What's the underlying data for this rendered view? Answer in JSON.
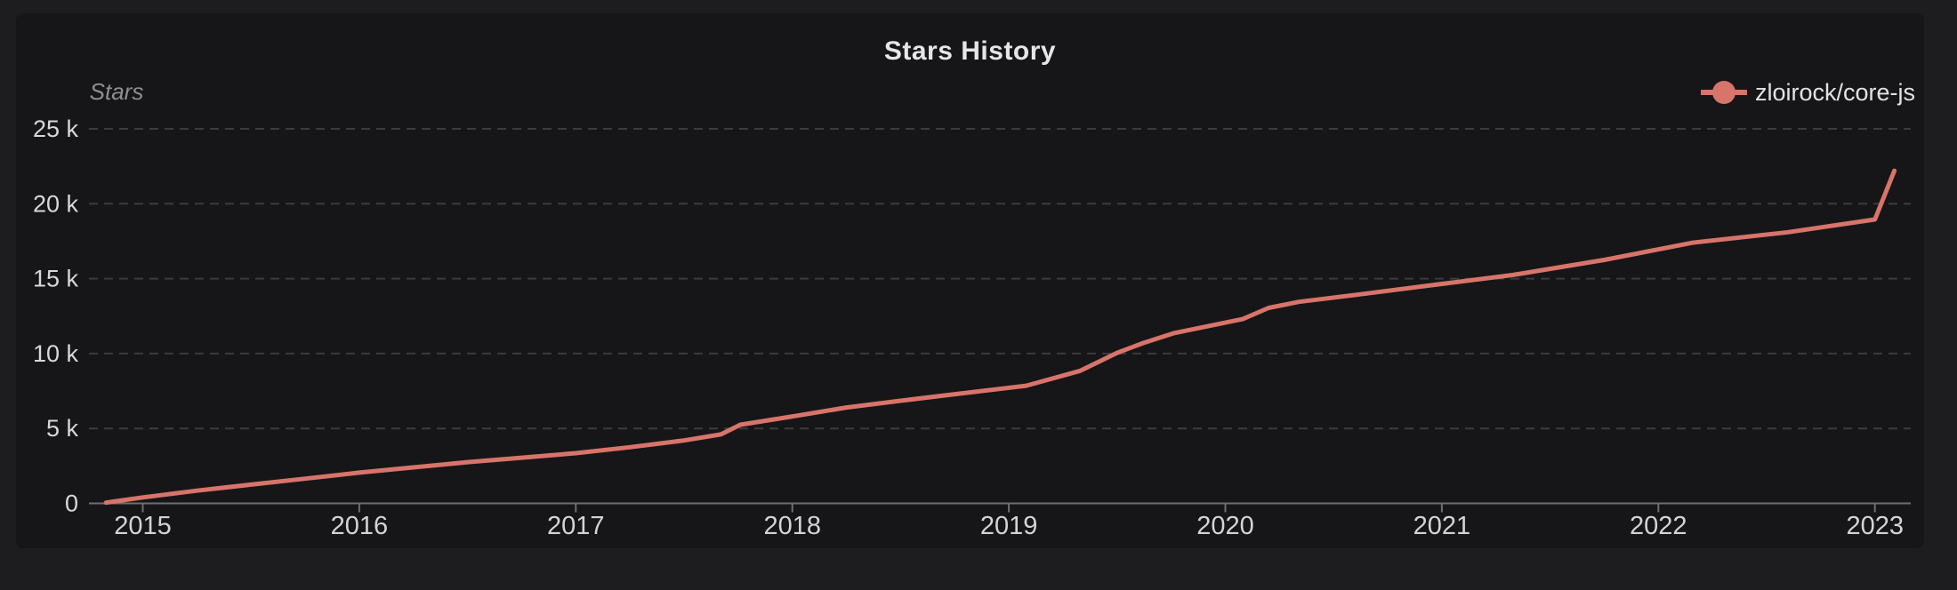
{
  "page": {
    "background": "#1d1d1f",
    "card_background": "#161618"
  },
  "header": {
    "title": "Stars History"
  },
  "legend": {
    "series_label": "zloirock/core-js",
    "marker_color": "#d8746a"
  },
  "chart_data": {
    "type": "line",
    "title": "Stars History",
    "ylabel": "Stars",
    "xlabel": "",
    "grid": "dashed-horizontal",
    "legend_position": "top-right",
    "xlim": [
      2014.75,
      2023.17
    ],
    "ylim": [
      0,
      26500
    ],
    "x_ticks": [
      {
        "value": 2015,
        "label": "2015"
      },
      {
        "value": 2016,
        "label": "2016"
      },
      {
        "value": 2017,
        "label": "2017"
      },
      {
        "value": 2018,
        "label": "2018"
      },
      {
        "value": 2019,
        "label": "2019"
      },
      {
        "value": 2020,
        "label": "2020"
      },
      {
        "value": 2021,
        "label": "2021"
      },
      {
        "value": 2022,
        "label": "2022"
      },
      {
        "value": 2023,
        "label": "2023"
      }
    ],
    "y_ticks": [
      {
        "value": 0,
        "label": "0"
      },
      {
        "value": 5000,
        "label": "5 k"
      },
      {
        "value": 10000,
        "label": "10 k"
      },
      {
        "value": 15000,
        "label": "15 k"
      },
      {
        "value": 20000,
        "label": "20 k"
      },
      {
        "value": 25000,
        "label": "25 k"
      }
    ],
    "series": [
      {
        "name": "zloirock/core-js",
        "color": "#d8746a",
        "points": [
          [
            2014.83,
            50
          ],
          [
            2015.0,
            400
          ],
          [
            2015.25,
            850
          ],
          [
            2015.5,
            1250
          ],
          [
            2015.75,
            1650
          ],
          [
            2016.0,
            2050
          ],
          [
            2016.25,
            2400
          ],
          [
            2016.5,
            2750
          ],
          [
            2016.75,
            3050
          ],
          [
            2017.0,
            3350
          ],
          [
            2017.25,
            3750
          ],
          [
            2017.5,
            4200
          ],
          [
            2017.67,
            4600
          ],
          [
            2017.76,
            5250
          ],
          [
            2018.0,
            5800
          ],
          [
            2018.25,
            6400
          ],
          [
            2018.5,
            6850
          ],
          [
            2018.76,
            7300
          ],
          [
            2019.08,
            7850
          ],
          [
            2019.33,
            8850
          ],
          [
            2019.5,
            10050
          ],
          [
            2019.62,
            10700
          ],
          [
            2019.76,
            11350
          ],
          [
            2020.08,
            12300
          ],
          [
            2020.2,
            13050
          ],
          [
            2020.34,
            13450
          ],
          [
            2020.62,
            13950
          ],
          [
            2021.0,
            14650
          ],
          [
            2021.33,
            15250
          ],
          [
            2021.75,
            16250
          ],
          [
            2022.16,
            17400
          ],
          [
            2022.6,
            18100
          ],
          [
            2023.0,
            18950
          ],
          [
            2023.09,
            22200
          ]
        ]
      }
    ]
  }
}
